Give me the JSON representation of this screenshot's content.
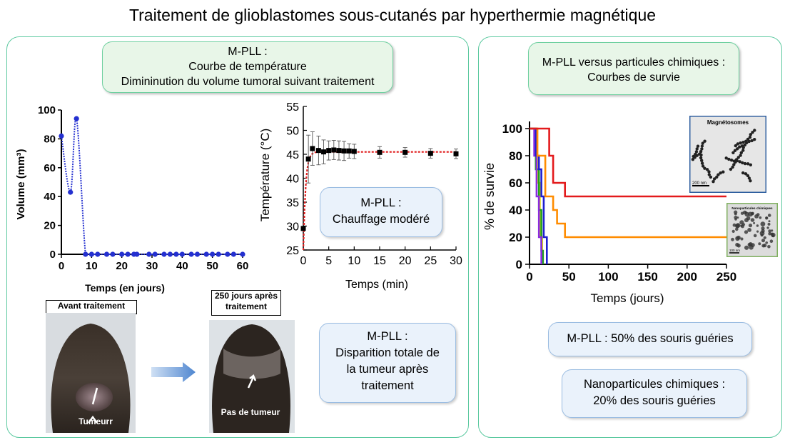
{
  "title": "Traitement de glioblastomes sous-cutanés par hyperthermie magnétique",
  "colors": {
    "panel_border": "#5cc9a0",
    "blue_series": "#2430d0",
    "temp_fit": "#e02020",
    "arrow": "#5a8ed6"
  },
  "left_box": {
    "line1": "M-PLL :",
    "line2": "Courbe de température",
    "line3": "Dimininution du volume tumoral suivant traitement"
  },
  "heating_box": {
    "line1": "M-PLL :",
    "line2": "Chauffage modéré"
  },
  "disappear_box": {
    "line1": "M-PLL :",
    "line2": "Disparition totale de",
    "line3": "la tumeur après",
    "line4": "traitement"
  },
  "photos": {
    "before_caption": "Avant traitement",
    "before_label": "Tumeurr",
    "after_caption_line1": "250 jours après",
    "after_caption_line2": "traitement",
    "after_label": "Pas de tumeur"
  },
  "right_box": {
    "line1": "M-PLL versus particules chimiques :",
    "line2": "Courbes de survie"
  },
  "mpll_box": "M-PLL :  50% des souris guéries",
  "chem_box": {
    "line1": "Nanoparticules chimiques :",
    "line2": "20% des souris guéries"
  },
  "insets": {
    "top_title": "Magnétosomes",
    "top_scale": "200 nm",
    "bottom_title": "Nanoparticules chimiques",
    "bottom_scale": "100 nm"
  },
  "chart_data": [
    {
      "type": "line",
      "xlabel": "Temps (en jours)",
      "ylabel": "Volume (mm³)",
      "xlim": [
        0,
        60
      ],
      "ylim": [
        0,
        100
      ],
      "xticks": [
        0,
        10,
        20,
        30,
        40,
        50,
        60
      ],
      "yticks": [
        0,
        20,
        40,
        60,
        80,
        100
      ],
      "color": "#2430d0",
      "points": [
        [
          0,
          82
        ],
        [
          3,
          43
        ],
        [
          5,
          94
        ],
        [
          8,
          0
        ],
        [
          10,
          0
        ],
        [
          12,
          0
        ],
        [
          15,
          0
        ],
        [
          17,
          0
        ],
        [
          20,
          0
        ],
        [
          22,
          0
        ],
        [
          24,
          0
        ],
        [
          25,
          0
        ],
        [
          29,
          0
        ],
        [
          31,
          0
        ],
        [
          34,
          0
        ],
        [
          36,
          0
        ],
        [
          38,
          0
        ],
        [
          40,
          0
        ],
        [
          43,
          0
        ],
        [
          45,
          0
        ],
        [
          48,
          0
        ],
        [
          50,
          0
        ],
        [
          52,
          0
        ],
        [
          55,
          0
        ],
        [
          57,
          0
        ],
        [
          60,
          0
        ]
      ]
    },
    {
      "type": "scatter",
      "xlabel": "Temps (min)",
      "ylabel": "Température (°C)",
      "xlim": [
        0,
        30
      ],
      "ylim": [
        25,
        55
      ],
      "xticks": [
        0,
        5,
        10,
        15,
        20,
        25,
        30
      ],
      "yticks": [
        25,
        30,
        35,
        40,
        45,
        50,
        55
      ],
      "points": [
        [
          0,
          29.5,
          0
        ],
        [
          1,
          44,
          5
        ],
        [
          1.8,
          46.2,
          3.5
        ],
        [
          3,
          45.8,
          3
        ],
        [
          4,
          45.5,
          2.5
        ],
        [
          5,
          45.8,
          2
        ],
        [
          6,
          45.9,
          2
        ],
        [
          7,
          45.8,
          2
        ],
        [
          8,
          45.7,
          2
        ],
        [
          9,
          45.7,
          1.5
        ],
        [
          10,
          45.6,
          1.5
        ],
        [
          15,
          45.4,
          1.2
        ],
        [
          20,
          45.4,
          1
        ],
        [
          25,
          45.2,
          1
        ],
        [
          30,
          45.1,
          1
        ]
      ],
      "fit_color": "#e02020",
      "fit_plateau": 45.5
    },
    {
      "type": "step",
      "xlabel": "Temps (jours)",
      "ylabel": "% de survie",
      "xlim": [
        0,
        250
      ],
      "ylim": [
        0,
        100
      ],
      "xticks": [
        0,
        50,
        100,
        150,
        200,
        250
      ],
      "yticks": [
        0,
        20,
        40,
        60,
        80,
        100
      ],
      "series": [
        {
          "color": "#e31a1c",
          "steps": [
            [
              0,
              100
            ],
            [
              25,
              100
            ],
            [
              25,
              80
            ],
            [
              30,
              80
            ],
            [
              30,
              60
            ],
            [
              45,
              60
            ],
            [
              45,
              50
            ],
            [
              250,
              50
            ]
          ]
        },
        {
          "color": "#ff8c00",
          "steps": [
            [
              0,
              100
            ],
            [
              10,
              100
            ],
            [
              10,
              80
            ],
            [
              20,
              80
            ],
            [
              20,
              50
            ],
            [
              30,
              50
            ],
            [
              30,
              40
            ],
            [
              35,
              40
            ],
            [
              35,
              30
            ],
            [
              45,
              30
            ],
            [
              45,
              20
            ],
            [
              250,
              20
            ]
          ]
        },
        {
          "color": "#1f1fd0",
          "steps": [
            [
              0,
              100
            ],
            [
              8,
              100
            ],
            [
              8,
              80
            ],
            [
              12,
              80
            ],
            [
              12,
              70
            ],
            [
              15,
              70
            ],
            [
              15,
              50
            ],
            [
              18,
              50
            ],
            [
              18,
              20
            ],
            [
              22,
              20
            ],
            [
              22,
              0
            ]
          ]
        },
        {
          "color": "#8a2be2",
          "steps": [
            [
              0,
              100
            ],
            [
              6,
              100
            ],
            [
              6,
              80
            ],
            [
              9,
              80
            ],
            [
              9,
              50
            ],
            [
              12,
              50
            ],
            [
              12,
              20
            ],
            [
              15,
              20
            ],
            [
              15,
              0
            ]
          ]
        },
        {
          "color": "#20a020",
          "steps": [
            [
              0,
              100
            ],
            [
              8,
              100
            ],
            [
              8,
              70
            ],
            [
              12,
              70
            ],
            [
              12,
              40
            ],
            [
              15,
              40
            ],
            [
              15,
              10
            ],
            [
              17,
              10
            ],
            [
              17,
              0
            ]
          ]
        },
        {
          "color": "#e6e600",
          "steps": [
            [
              0,
              100
            ],
            [
              10,
              100
            ],
            [
              10,
              60
            ],
            [
              13,
              60
            ],
            [
              13,
              20
            ],
            [
              16,
              20
            ],
            [
              16,
              0
            ]
          ]
        }
      ]
    }
  ]
}
